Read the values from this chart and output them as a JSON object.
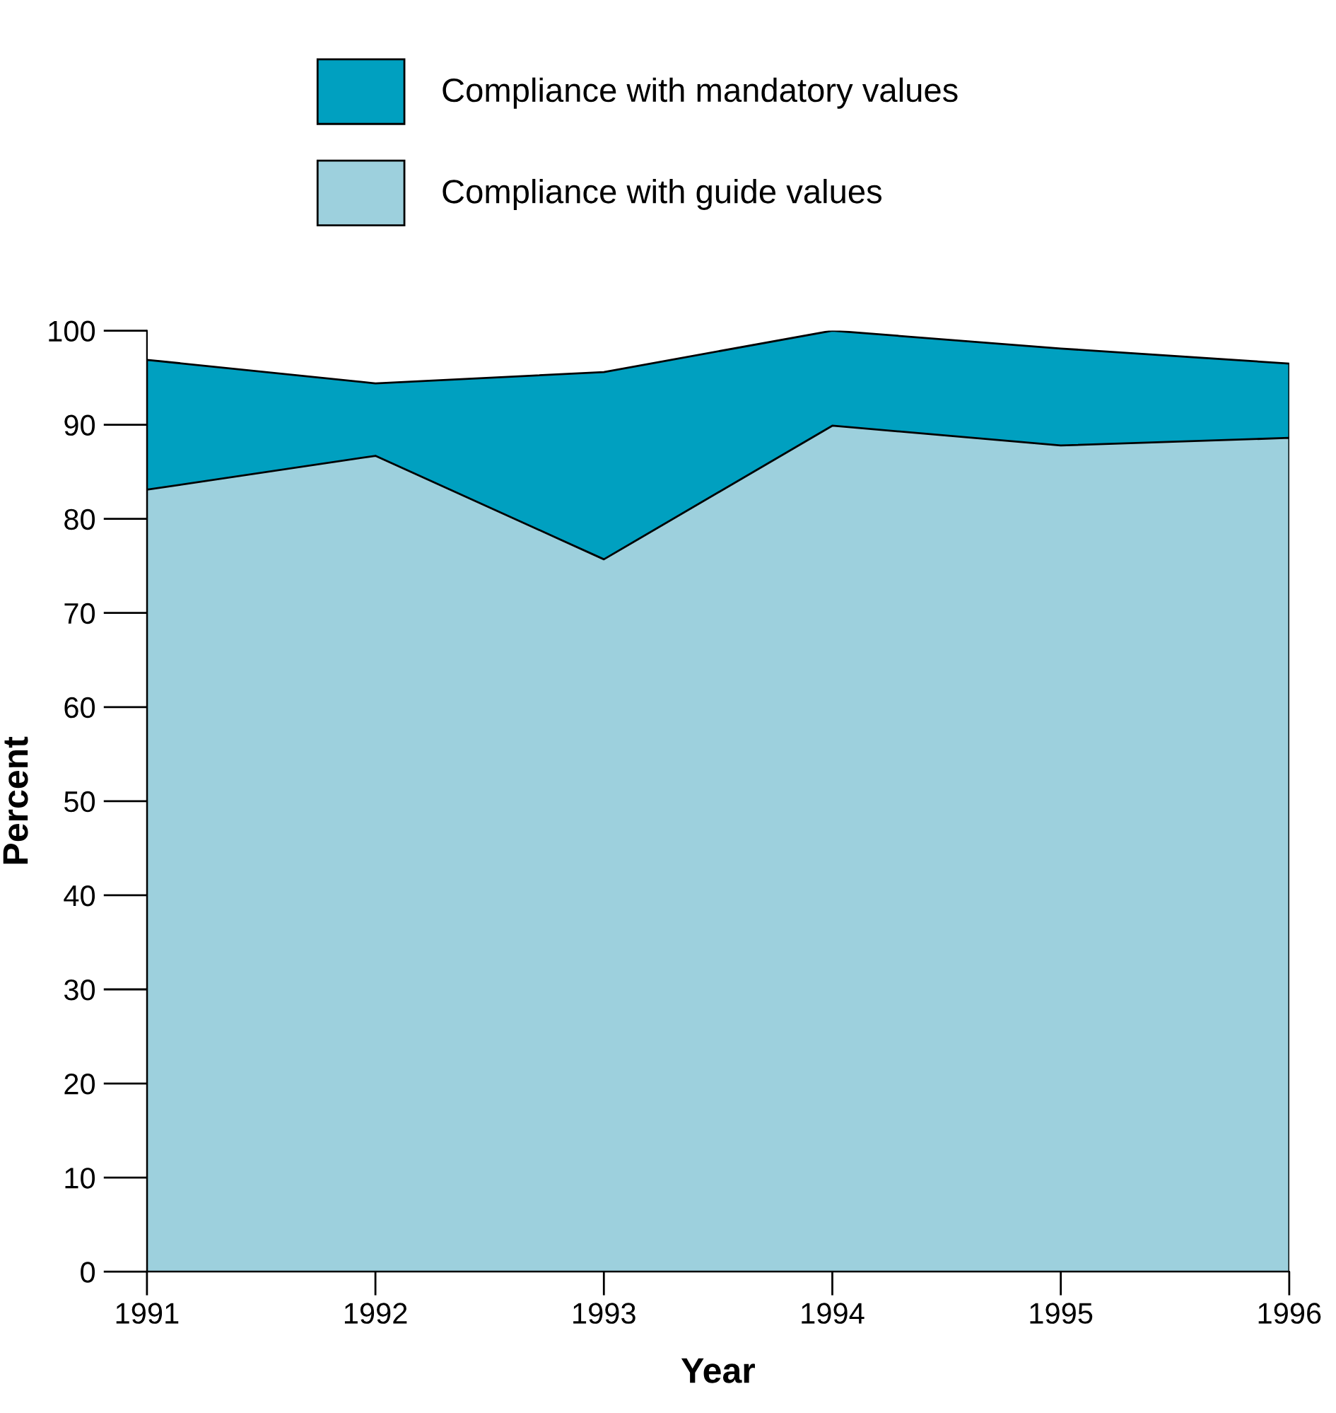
{
  "chart_data": {
    "type": "area",
    "xlabel": "Year",
    "ylabel": "Percent",
    "x": [
      1991,
      1992,
      1993,
      1994,
      1995,
      1996
    ],
    "series": [
      {
        "name": "Compliance with mandatory values",
        "color": "#00a0c0",
        "values": [
          96.9,
          94.4,
          95.6,
          100,
          98.1,
          96.5
        ]
      },
      {
        "name": "Compliance with guide values",
        "color": "#9dd0dd",
        "values": [
          83.1,
          86.7,
          75.7,
          89.9,
          87.8,
          88.6
        ]
      }
    ],
    "xlim": [
      1991,
      1996
    ],
    "xticks": [
      1991,
      1992,
      1993,
      1994,
      1995,
      1996
    ],
    "ylim": [
      0,
      100
    ],
    "yticks": [
      0,
      10,
      20,
      30,
      40,
      50,
      60,
      70,
      80,
      90,
      100
    ],
    "grid": false,
    "legend": "top"
  }
}
